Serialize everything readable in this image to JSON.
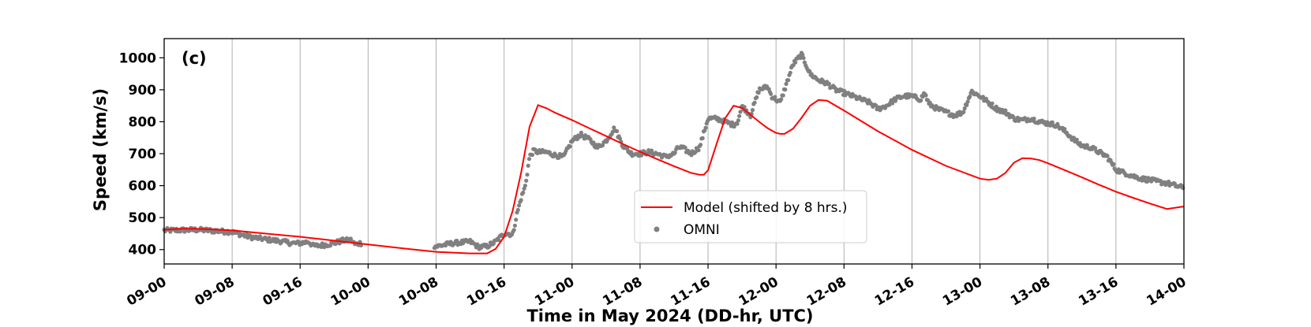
{
  "chart_data": {
    "type": "line",
    "panel_label": "(c)",
    "xlabel": "Time in May 2024 (DD-hr, UTC)",
    "ylabel": "Speed (km/s)",
    "x_unit": "hours since 09-00",
    "xlim": [
      0,
      120
    ],
    "ylim": [
      355,
      1060
    ],
    "x_ticks": [
      0,
      8,
      16,
      24,
      32,
      40,
      48,
      56,
      64,
      72,
      80,
      88,
      96,
      104,
      112,
      120
    ],
    "x_tick_labels": [
      "09-00",
      "09-08",
      "09-16",
      "10-00",
      "10-08",
      "10-16",
      "11-00",
      "11-08",
      "11-16",
      "12-00",
      "12-08",
      "12-16",
      "13-00",
      "13-08",
      "13-16",
      "14-00"
    ],
    "y_ticks": [
      400,
      500,
      600,
      700,
      800,
      900,
      1000
    ],
    "grid": "vertical",
    "legend_position": "lower-center",
    "series": [
      {
        "name": "Model (shifted by 8 hrs.)",
        "style": "line",
        "color": "#ff0000",
        "x": [
          0,
          2,
          4,
          8,
          12,
          16,
          20,
          24,
          28,
          32,
          36,
          38,
          39,
          40,
          41,
          42,
          43,
          44,
          45,
          46,
          48,
          50,
          52,
          54,
          56,
          58,
          60,
          62,
          63,
          63.5,
          64,
          65,
          66,
          67,
          68,
          69,
          70,
          71,
          72,
          72.5,
          73,
          74,
          75,
          76,
          77,
          78,
          80,
          84,
          88,
          92,
          96,
          97,
          98,
          99,
          100,
          101,
          102,
          103,
          104,
          106,
          108,
          110,
          112,
          114,
          116,
          118,
          120
        ],
        "y": [
          462,
          465,
          465,
          460,
          450,
          440,
          428,
          416,
          404,
          393,
          388,
          388,
          402,
          440,
          520,
          640,
          785,
          852,
          842,
          828,
          805,
          780,
          755,
          730,
          706,
          683,
          661,
          640,
          634,
          634,
          648,
          730,
          810,
          850,
          843,
          822,
          800,
          780,
          765,
          762,
          762,
          778,
          812,
          850,
          868,
          866,
          835,
          770,
          712,
          662,
          622,
          618,
          622,
          640,
          672,
          686,
          685,
          680,
          670,
          648,
          626,
          603,
          581,
          562,
          544,
          527,
          535
        ]
      },
      {
        "name": "OMNI",
        "style": "scatter",
        "color": "#808080",
        "trace_x": [
          0,
          4,
          8,
          10,
          12,
          14,
          15,
          16,
          17,
          17.5,
          18,
          19,
          20,
          21,
          22,
          22.5,
          23,
          32,
          34,
          36,
          37,
          38,
          39,
          40,
          40.5,
          41,
          41.5,
          42,
          42.5,
          43,
          43.5,
          44,
          45,
          46,
          47,
          48,
          49,
          50,
          51,
          52,
          53,
          54,
          55,
          56,
          57,
          58,
          59,
          60,
          60.5,
          61,
          62,
          63,
          64,
          65,
          66,
          67,
          67.5,
          68,
          69,
          70,
          71,
          71.5,
          72,
          72.5,
          73,
          73.5,
          74,
          75,
          76,
          77,
          78,
          79,
          80,
          81,
          82,
          83,
          84,
          85,
          86,
          87,
          88,
          89,
          89.5,
          90,
          91,
          92,
          93,
          94,
          95,
          96,
          97,
          98,
          99,
          100,
          101,
          102,
          103,
          104,
          105,
          106,
          107,
          108,
          109,
          110,
          111,
          112,
          113,
          114,
          115,
          116,
          117,
          118,
          119,
          120
        ],
        "trace_y": [
          460,
          462,
          455,
          440,
          432,
          425,
          420,
          420,
          425,
          412,
          412,
          415,
          420,
          428,
          430,
          415,
          420,
          410,
          420,
          425,
          408,
          410,
          425,
          450,
          450,
          445,
          510,
          560,
          600,
          690,
          710,
          705,
          705,
          695,
          690,
          740,
          760,
          745,
          720,
          740,
          780,
          725,
          700,
          700,
          705,
          700,
          690,
          700,
          720,
          718,
          700,
          720,
          810,
          810,
          800,
          790,
          800,
          850,
          820,
          900,
          910,
          880,
          870,
          860,
          900,
          940,
          980,
          1010,
          950,
          930,
          920,
          900,
          890,
          880,
          870,
          860,
          840,
          850,
          870,
          880,
          880,
          870,
          890,
          855,
          840,
          830,
          820,
          830,
          895,
          880,
          860,
          840,
          830,
          810,
          805,
          810,
          800,
          795,
          790,
          770,
          745,
          725,
          720,
          705,
          690,
          650,
          640,
          630,
          622,
          618,
          612,
          608,
          600,
          593,
          588,
          580,
          572
        ]
      }
    ]
  }
}
